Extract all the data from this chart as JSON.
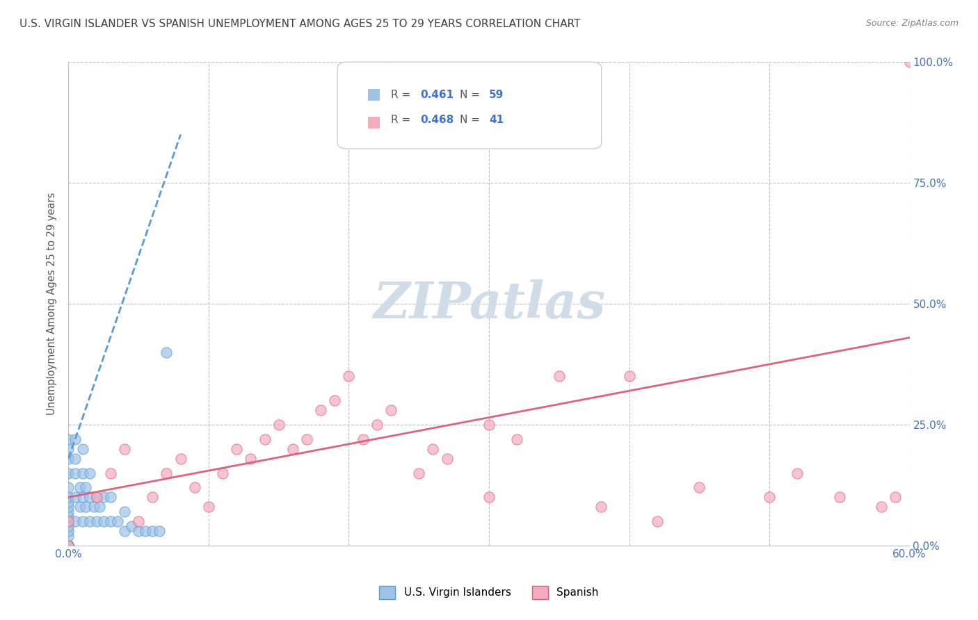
{
  "title": "U.S. VIRGIN ISLANDER VS SPANISH UNEMPLOYMENT AMONG AGES 25 TO 29 YEARS CORRELATION CHART",
  "source": "Source: ZipAtlas.com",
  "xlabel": "",
  "ylabel": "Unemployment Among Ages 25 to 29 years",
  "xlim": [
    0,
    0.6
  ],
  "ylim": [
    0,
    1.0
  ],
  "xticks": [
    0.0,
    0.1,
    0.2,
    0.3,
    0.4,
    0.5,
    0.6
  ],
  "xticklabels": [
    "0.0%",
    "",
    "",
    "",
    "",
    "",
    "60.0%"
  ],
  "yticks": [
    0.0,
    0.25,
    0.5,
    0.75,
    1.0
  ],
  "yticklabels": [
    "0.0%",
    "25.0%",
    "50.0%",
    "75.0%",
    "100.0%"
  ],
  "legend_labels": [
    "U.S. Virgin Islanders",
    "Spanish"
  ],
  "legend_r": [
    "R = 0.461",
    "R = 0.468"
  ],
  "legend_n": [
    "N = 59",
    "N = 41"
  ],
  "blue_color": "#9DC3E6",
  "pink_color": "#F4ACBE",
  "blue_line_color": "#5B9BD5",
  "pink_line_color": "#E06080",
  "title_color": "#404040",
  "axis_label_color": "#595959",
  "tick_color": "#7F7F7F",
  "right_tick_color": "#4472C4",
  "grid_color": "#BFBFBF",
  "watermark_color": "#D0DCE8",
  "blue_scatter_x": [
    0.0,
    0.0,
    0.0,
    0.0,
    0.0,
    0.0,
    0.0,
    0.0,
    0.0,
    0.0,
    0.0,
    0.0,
    0.0,
    0.0,
    0.0,
    0.0,
    0.0,
    0.0,
    0.0,
    0.0,
    0.0,
    0.0,
    0.0,
    0.0,
    0.0,
    0.0,
    0.005,
    0.005,
    0.005,
    0.005,
    0.005,
    0.008,
    0.008,
    0.01,
    0.01,
    0.01,
    0.01,
    0.012,
    0.012,
    0.015,
    0.015,
    0.015,
    0.018,
    0.02,
    0.02,
    0.022,
    0.025,
    0.025,
    0.03,
    0.03,
    0.035,
    0.04,
    0.04,
    0.045,
    0.05,
    0.055,
    0.06,
    0.065,
    0.07
  ],
  "blue_scatter_y": [
    0.0,
    0.0,
    0.0,
    0.0,
    0.0,
    0.0,
    0.0,
    0.0,
    0.0,
    0.0,
    0.0,
    0.0,
    0.02,
    0.03,
    0.04,
    0.05,
    0.06,
    0.07,
    0.08,
    0.09,
    0.1,
    0.12,
    0.15,
    0.18,
    0.2,
    0.22,
    0.05,
    0.1,
    0.15,
    0.18,
    0.22,
    0.08,
    0.12,
    0.05,
    0.1,
    0.15,
    0.2,
    0.08,
    0.12,
    0.05,
    0.1,
    0.15,
    0.08,
    0.05,
    0.1,
    0.08,
    0.05,
    0.1,
    0.05,
    0.1,
    0.05,
    0.03,
    0.07,
    0.04,
    0.03,
    0.03,
    0.03,
    0.03,
    0.4
  ],
  "pink_scatter_x": [
    0.0,
    0.0,
    0.02,
    0.03,
    0.04,
    0.05,
    0.06,
    0.07,
    0.08,
    0.09,
    0.1,
    0.11,
    0.12,
    0.13,
    0.14,
    0.15,
    0.16,
    0.17,
    0.18,
    0.19,
    0.2,
    0.21,
    0.22,
    0.23,
    0.25,
    0.26,
    0.27,
    0.3,
    0.3,
    0.32,
    0.35,
    0.38,
    0.4,
    0.42,
    0.45,
    0.5,
    0.52,
    0.55,
    0.58,
    0.59,
    0.6
  ],
  "pink_scatter_y": [
    0.0,
    0.05,
    0.1,
    0.15,
    0.2,
    0.05,
    0.1,
    0.15,
    0.18,
    0.12,
    0.08,
    0.15,
    0.2,
    0.18,
    0.22,
    0.25,
    0.2,
    0.22,
    0.28,
    0.3,
    0.35,
    0.22,
    0.25,
    0.28,
    0.15,
    0.2,
    0.18,
    0.25,
    0.1,
    0.22,
    0.35,
    0.08,
    0.35,
    0.05,
    0.12,
    0.1,
    0.15,
    0.1,
    0.08,
    0.1,
    1.0
  ],
  "blue_trend_x": [
    0.0,
    0.08
  ],
  "blue_trend_y": [
    0.18,
    0.85
  ],
  "pink_trend_x": [
    0.0,
    0.6
  ],
  "pink_trend_y": [
    0.1,
    0.43
  ]
}
